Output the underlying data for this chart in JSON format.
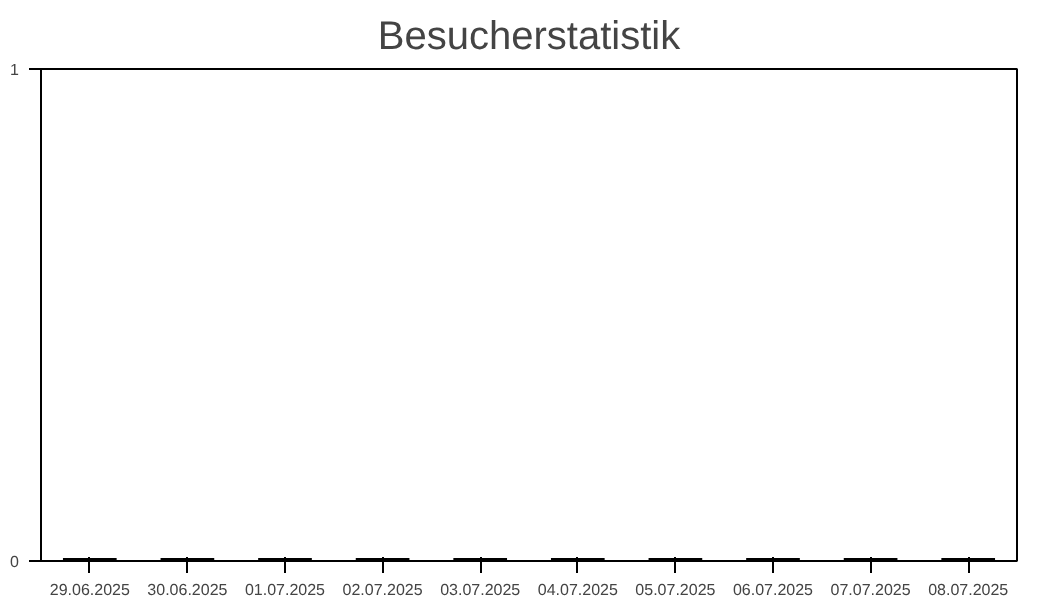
{
  "chart_data": {
    "type": "bar",
    "title": "Besucherstatistik",
    "categories": [
      "29.06.2025",
      "30.06.2025",
      "01.07.2025",
      "02.07.2025",
      "03.07.2025",
      "04.07.2025",
      "05.07.2025",
      "06.07.2025",
      "07.07.2025",
      "08.07.2025"
    ],
    "values": [
      0,
      0,
      0,
      0,
      0,
      0,
      0,
      0,
      0,
      0
    ],
    "color": "#000000",
    "ylim": [
      0,
      1
    ],
    "yticks": [
      0,
      1
    ],
    "grid": false
  }
}
